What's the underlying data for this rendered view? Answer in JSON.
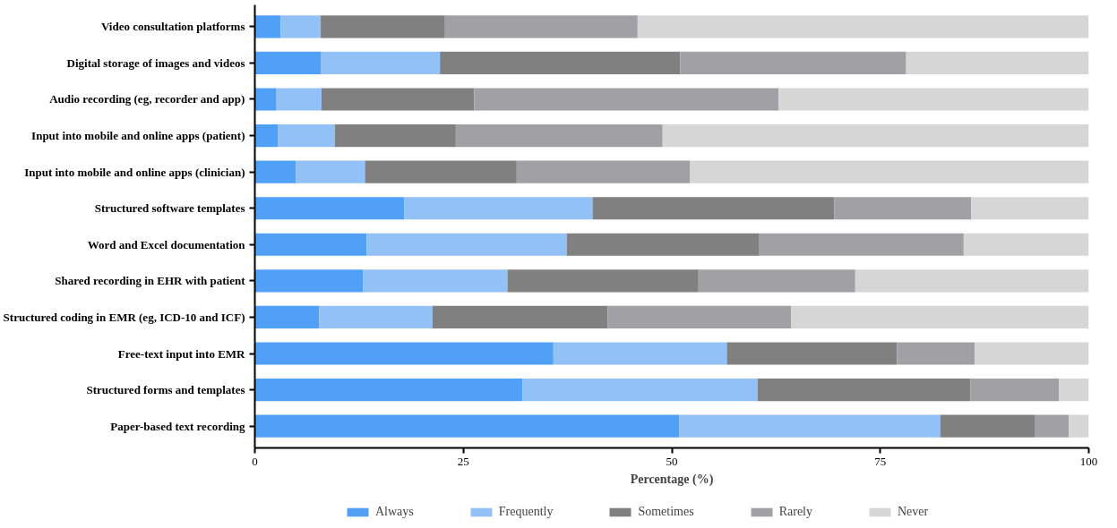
{
  "chart_data": {
    "type": "bar",
    "orientation": "horizontal",
    "stacked": true,
    "xlabel": "Percentage (%)",
    "categories": [
      "Video consultation platforms",
      "Digital storage of images and videos",
      "Audio recording (eg, recorder and app)",
      "Input into mobile and online apps (patient)",
      "Input into mobile and online apps (clinician)",
      "Structured software templates",
      "Word and Excel documentation",
      "Shared recording in EHR with patient",
      "Structured coding in EMR (eg, ICD-10 and ICF)",
      "Free-text input into EMR",
      "Structured forms and templates",
      "Paper-based text recording"
    ],
    "series": [
      {
        "name": "Always",
        "color": "#50a0f8",
        "values": [
          3.1,
          7.9,
          2.6,
          2.8,
          4.9,
          17.9,
          13.4,
          13.0,
          7.7,
          35.8,
          32.1,
          50.9
        ]
      },
      {
        "name": "Frequently",
        "color": "#92c1f8",
        "values": [
          4.8,
          14.3,
          5.4,
          6.8,
          8.3,
          22.6,
          24.0,
          17.3,
          13.6,
          20.8,
          28.2,
          31.3
        ]
      },
      {
        "name": "Sometimes",
        "color": "#808080",
        "values": [
          14.9,
          28.8,
          18.3,
          14.5,
          18.2,
          29.0,
          23.1,
          22.9,
          21.0,
          20.4,
          25.5,
          11.3
        ]
      },
      {
        "name": "Rarely",
        "color": "#a1a1a5",
        "values": [
          23.1,
          27.1,
          36.5,
          24.8,
          20.8,
          16.4,
          24.5,
          18.8,
          22.0,
          9.3,
          10.6,
          4.1
        ]
      },
      {
        "name": "Never",
        "color": "#d6d6d6",
        "values": [
          54.1,
          21.9,
          37.2,
          51.1,
          47.8,
          14.1,
          15.0,
          28.0,
          35.7,
          13.7,
          3.6,
          2.4
        ]
      }
    ],
    "xlim": [
      0,
      100
    ],
    "xticks": [
      0,
      25,
      50,
      75,
      100
    ],
    "grid": false,
    "legend": "bottom"
  }
}
